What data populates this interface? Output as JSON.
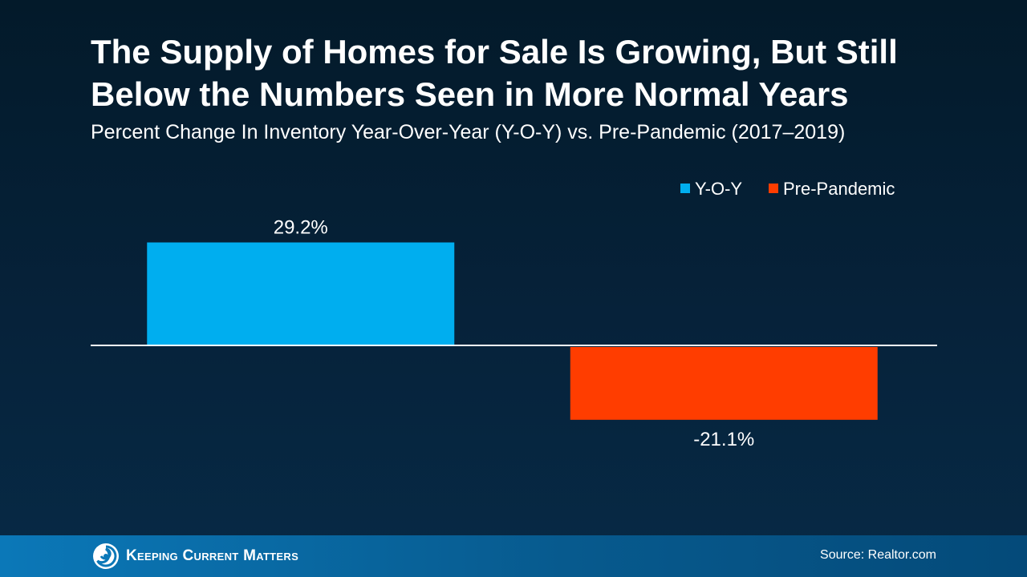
{
  "title": "The Supply of Homes for Sale Is Growing, But Still Below the Numbers Seen in More Normal Years",
  "subtitle": "Percent Change In Inventory Year-Over-Year (Y-O-Y) vs. Pre-Pandemic (2017–2019)",
  "footer": {
    "brand": "Keeping Current Matters",
    "source": "Source: Realtor.com"
  },
  "chart_data": {
    "type": "bar",
    "title": "The Supply of Homes for Sale Is Growing, But Still Below the Numbers Seen in More Normal Years",
    "subtitle": "Percent Change In Inventory Year-Over-Year (Y-O-Y) vs. Pre-Pandemic (2017–2019)",
    "series": [
      {
        "name": "Y-O-Y",
        "values": [
          29.2
        ],
        "label": "29.2%",
        "color": "#00aeef"
      },
      {
        "name": "Pre-Pandemic",
        "values": [
          -21.1
        ],
        "label": "-21.1%",
        "color": "#ff3d00"
      }
    ],
    "ylim": [
      -30,
      40
    ],
    "grid": false,
    "legend": "top-right",
    "baseline_color": "#ffffff"
  }
}
